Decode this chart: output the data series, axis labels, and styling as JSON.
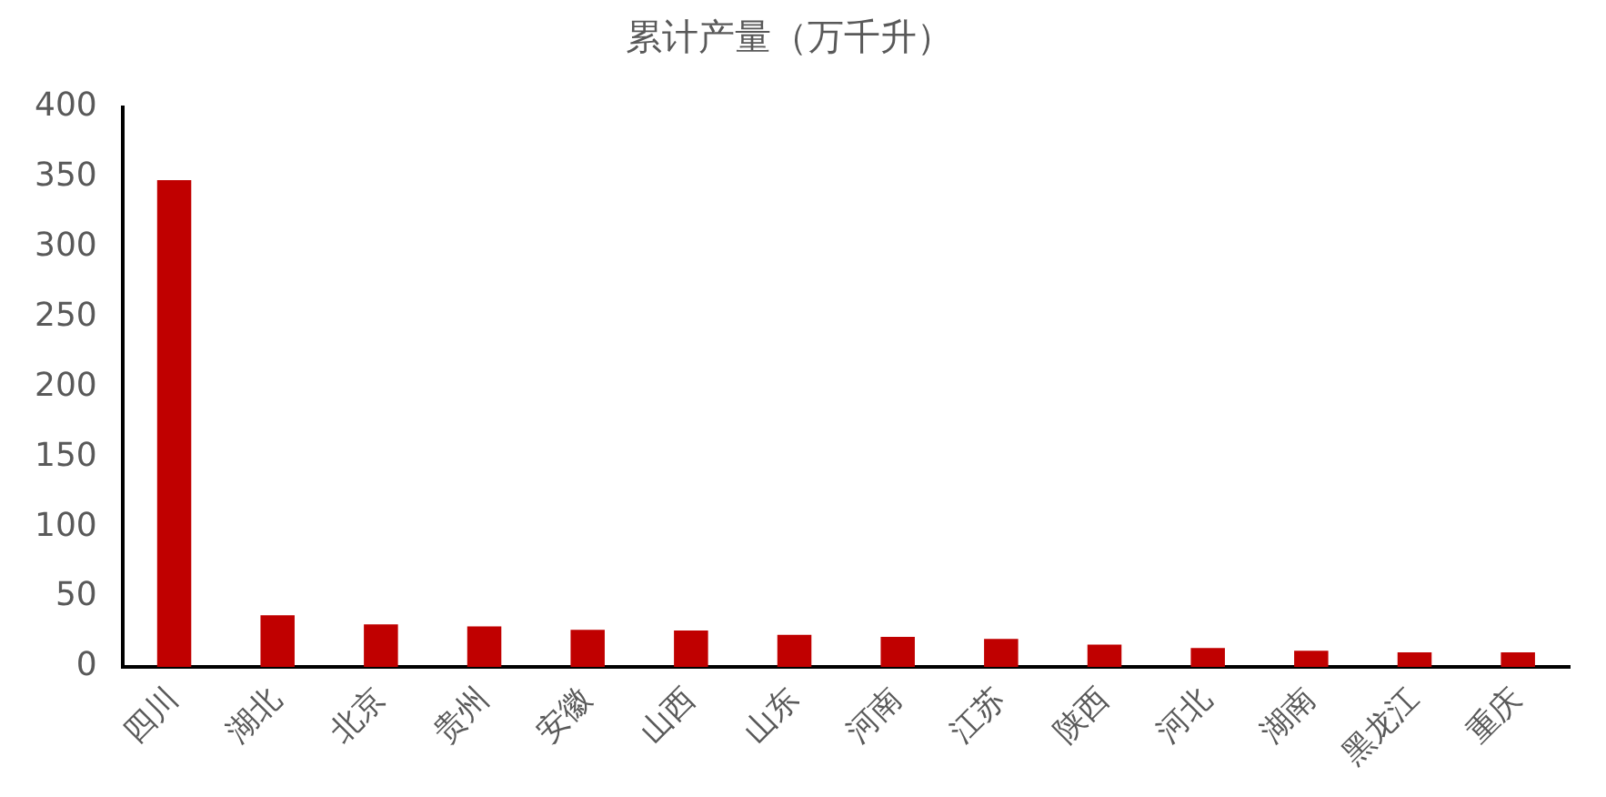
{
  "chart_data": {
    "type": "bar",
    "title": "累计产量（万千升）",
    "categories": [
      "四川",
      "湖北",
      "北京",
      "贵州",
      "安徽",
      "山西",
      "山东",
      "河南",
      "江苏",
      "陕西",
      "河北",
      "湖南",
      "黑龙江",
      "重庆"
    ],
    "values": [
      348,
      37,
      30.5,
      29,
      26.5,
      26,
      23,
      21.5,
      20,
      16,
      13.5,
      11.5,
      10.5,
      10.5
    ],
    "color": "#c00000",
    "ylim": [
      0,
      400
    ],
    "yticks": [
      0,
      50,
      100,
      150,
      200,
      250,
      300,
      350,
      400
    ],
    "grid": false
  }
}
